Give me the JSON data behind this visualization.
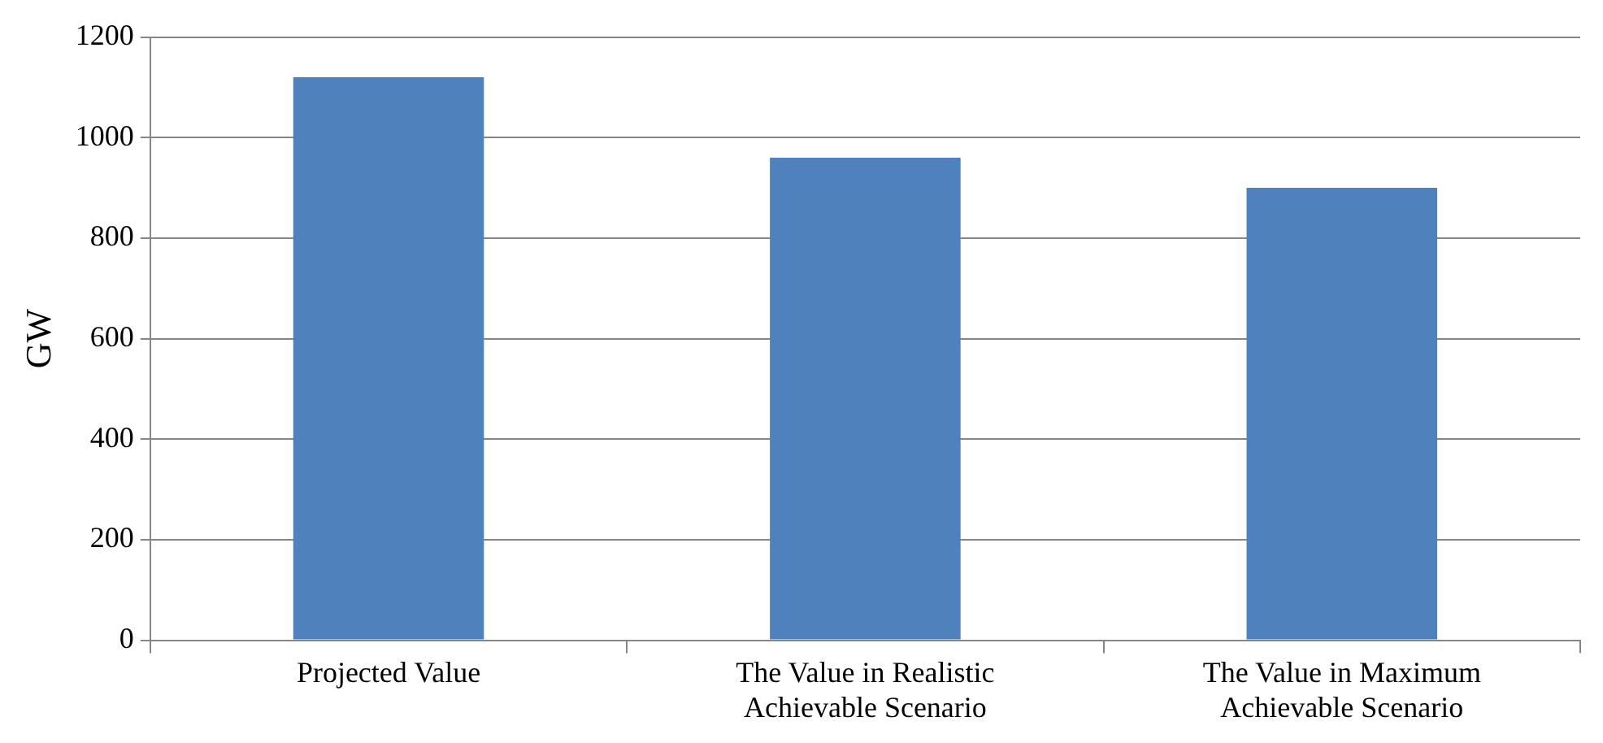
{
  "chart_data": {
    "type": "bar",
    "ylabel": "GW",
    "categories": [
      "Projected Value",
      "The Value in Realistic Achievable Scenario",
      "The Value in Maximum Achievable Scenario"
    ],
    "values": [
      1120,
      960,
      900
    ],
    "color": "#4f81bd",
    "ylim": [
      0,
      1200
    ],
    "yticks": [
      0,
      200,
      400,
      600,
      800,
      1000,
      1200
    ],
    "grid": "y",
    "legend": false
  }
}
